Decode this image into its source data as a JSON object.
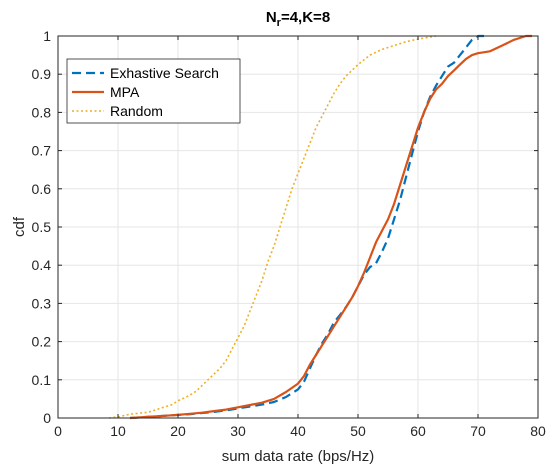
{
  "chart_data": {
    "type": "line",
    "title_main": "N",
    "title_sub": "r",
    "title_rest": "=4,K=8",
    "xlabel": "sum data rate (bps/Hz)",
    "ylabel": "cdf",
    "xlim": [
      0,
      80
    ],
    "ylim": [
      0,
      1
    ],
    "xticks": [
      "0",
      "10",
      "20",
      "30",
      "40",
      "50",
      "60",
      "70",
      "80"
    ],
    "yticks": [
      "0",
      "0.1",
      "0.2",
      "0.3",
      "0.4",
      "0.5",
      "0.6",
      "0.7",
      "0.8",
      "0.9",
      "1"
    ],
    "grid": true,
    "legend_position": "top-left",
    "series": [
      {
        "name": "Exhastive Search",
        "color": "#0072BD",
        "style": "dashed",
        "points": [
          [
            12,
            0
          ],
          [
            15,
            0.003
          ],
          [
            18,
            0.006
          ],
          [
            20,
            0.008
          ],
          [
            22,
            0.01
          ],
          [
            24,
            0.013
          ],
          [
            26,
            0.016
          ],
          [
            28,
            0.02
          ],
          [
            30,
            0.025
          ],
          [
            32,
            0.03
          ],
          [
            34,
            0.035
          ],
          [
            36,
            0.042
          ],
          [
            38,
            0.055
          ],
          [
            40,
            0.075
          ],
          [
            41,
            0.095
          ],
          [
            42,
            0.13
          ],
          [
            43,
            0.165
          ],
          [
            44,
            0.195
          ],
          [
            45,
            0.22
          ],
          [
            46,
            0.25
          ],
          [
            47,
            0.27
          ],
          [
            48,
            0.29
          ],
          [
            49,
            0.315
          ],
          [
            50,
            0.345
          ],
          [
            51,
            0.375
          ],
          [
            52,
            0.395
          ],
          [
            53,
            0.405
          ],
          [
            54,
            0.435
          ],
          [
            55,
            0.47
          ],
          [
            56,
            0.52
          ],
          [
            57,
            0.57
          ],
          [
            58,
            0.63
          ],
          [
            59,
            0.69
          ],
          [
            60,
            0.75
          ],
          [
            61,
            0.8
          ],
          [
            62,
            0.84
          ],
          [
            63,
            0.87
          ],
          [
            64,
            0.895
          ],
          [
            65,
            0.92
          ],
          [
            66,
            0.93
          ],
          [
            67,
            0.95
          ],
          [
            68,
            0.97
          ],
          [
            69,
            0.99
          ],
          [
            70,
            1
          ],
          [
            71,
            1
          ]
        ]
      },
      {
        "name": "MPA",
        "color": "#D95319",
        "style": "solid",
        "points": [
          [
            12,
            0
          ],
          [
            15,
            0.003
          ],
          [
            18,
            0.006
          ],
          [
            20,
            0.008
          ],
          [
            22,
            0.011
          ],
          [
            24,
            0.014
          ],
          [
            26,
            0.018
          ],
          [
            28,
            0.022
          ],
          [
            30,
            0.028
          ],
          [
            32,
            0.034
          ],
          [
            34,
            0.04
          ],
          [
            36,
            0.05
          ],
          [
            38,
            0.068
          ],
          [
            40,
            0.09
          ],
          [
            41,
            0.11
          ],
          [
            42,
            0.14
          ],
          [
            43,
            0.165
          ],
          [
            44,
            0.19
          ],
          [
            45,
            0.215
          ],
          [
            46,
            0.24
          ],
          [
            47,
            0.265
          ],
          [
            48,
            0.29
          ],
          [
            49,
            0.315
          ],
          [
            50,
            0.345
          ],
          [
            51,
            0.38
          ],
          [
            52,
            0.42
          ],
          [
            53,
            0.46
          ],
          [
            54,
            0.49
          ],
          [
            55,
            0.52
          ],
          [
            56,
            0.56
          ],
          [
            57,
            0.61
          ],
          [
            58,
            0.66
          ],
          [
            59,
            0.71
          ],
          [
            60,
            0.76
          ],
          [
            61,
            0.8
          ],
          [
            62,
            0.835
          ],
          [
            63,
            0.86
          ],
          [
            64,
            0.875
          ],
          [
            65,
            0.895
          ],
          [
            66,
            0.91
          ],
          [
            67,
            0.925
          ],
          [
            68,
            0.94
          ],
          [
            69,
            0.95
          ],
          [
            70,
            0.955
          ],
          [
            72,
            0.96
          ],
          [
            74,
            0.975
          ],
          [
            76,
            0.99
          ],
          [
            78,
            1
          ],
          [
            79,
            1
          ]
        ]
      },
      {
        "name": "Random",
        "color": "#EDB120",
        "style": "dotted",
        "points": [
          [
            8.5,
            0
          ],
          [
            10,
            0.003
          ],
          [
            12,
            0.01
          ],
          [
            15,
            0.015
          ],
          [
            17,
            0.025
          ],
          [
            19,
            0.035
          ],
          [
            20,
            0.045
          ],
          [
            21,
            0.052
          ],
          [
            22,
            0.06
          ],
          [
            23,
            0.07
          ],
          [
            24,
            0.085
          ],
          [
            25,
            0.1
          ],
          [
            26,
            0.115
          ],
          [
            27,
            0.13
          ],
          [
            28,
            0.15
          ],
          [
            29,
            0.18
          ],
          [
            30,
            0.21
          ],
          [
            31,
            0.24
          ],
          [
            32,
            0.28
          ],
          [
            33,
            0.32
          ],
          [
            34,
            0.36
          ],
          [
            35,
            0.41
          ],
          [
            36,
            0.45
          ],
          [
            37,
            0.5
          ],
          [
            38,
            0.55
          ],
          [
            39,
            0.6
          ],
          [
            40,
            0.64
          ],
          [
            41,
            0.68
          ],
          [
            42,
            0.72
          ],
          [
            43,
            0.76
          ],
          [
            44,
            0.79
          ],
          [
            45,
            0.82
          ],
          [
            46,
            0.85
          ],
          [
            47,
            0.875
          ],
          [
            48,
            0.895
          ],
          [
            50,
            0.925
          ],
          [
            52,
            0.95
          ],
          [
            54,
            0.965
          ],
          [
            56,
            0.975
          ],
          [
            58,
            0.985
          ],
          [
            60,
            0.992
          ],
          [
            62,
            0.997
          ],
          [
            63,
            1
          ]
        ]
      }
    ]
  }
}
